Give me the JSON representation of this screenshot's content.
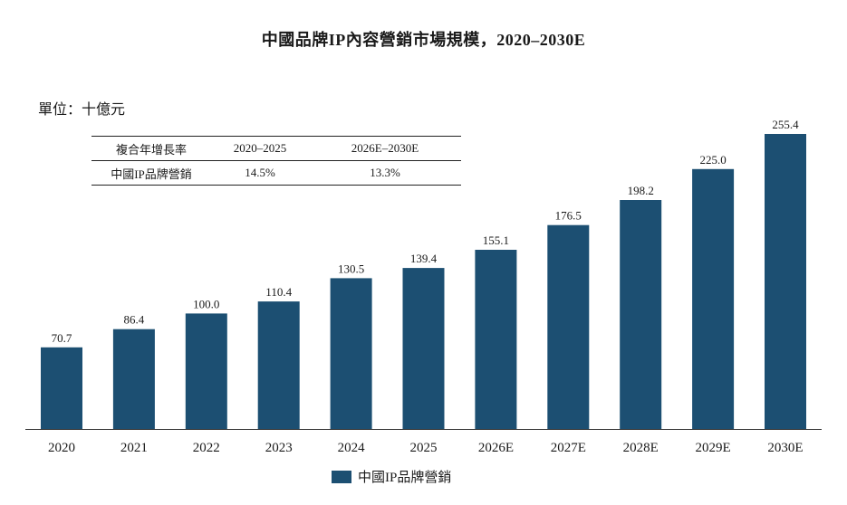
{
  "chart_data": {
    "type": "bar",
    "title": "中國品牌IP內容營銷市場規模，2020–2030E",
    "unit_label": "單位：十億元",
    "categories": [
      "2020",
      "2021",
      "2022",
      "2023",
      "2024",
      "2025",
      "2026E",
      "2027E",
      "2028E",
      "2029E",
      "2030E"
    ],
    "series": [
      {
        "name": "中國IP品牌營銷",
        "values": [
          70.7,
          86.4,
          100.0,
          110.4,
          130.5,
          139.4,
          155.1,
          176.5,
          198.2,
          225.0,
          255.4
        ],
        "labels": [
          "70.7",
          "86.4",
          "100.0",
          "110.4",
          "130.5",
          "139.4",
          "155.1",
          "176.5",
          "198.2",
          "225.0",
          "255.4"
        ]
      }
    ],
    "ylim": [
      0,
      270
    ],
    "bar_color": "#1c4f72",
    "grid": false,
    "legend_position": "bottom-center"
  },
  "cagr_table": {
    "header": [
      "複合年增長率",
      "2020–2025",
      "2026E–2030E"
    ],
    "rows": [
      [
        "中國IP品牌營銷",
        "14.5%",
        "13.3%"
      ]
    ]
  }
}
